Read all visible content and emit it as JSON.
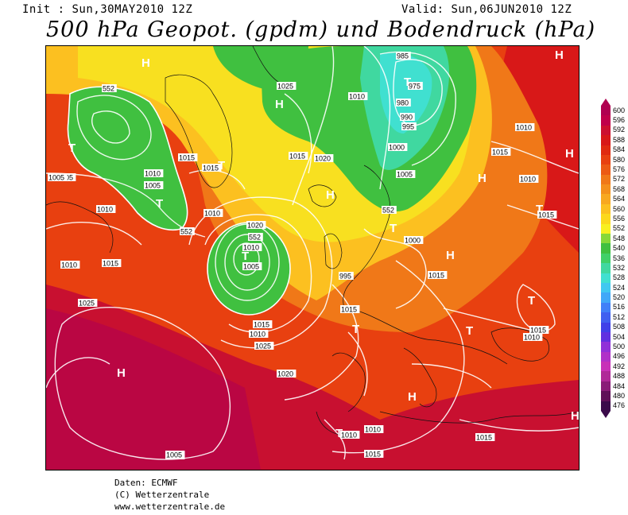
{
  "header": {
    "init": "Init : Sun,30MAY2010 12Z",
    "valid": "Valid: Sun,06JUN2010 12Z",
    "title": "500 hPa Geopot. (gpdm) und Bodendruck (hPa)"
  },
  "legend": {
    "ticks": [
      600,
      596,
      592,
      588,
      584,
      580,
      576,
      572,
      568,
      564,
      560,
      556,
      552,
      548,
      540,
      536,
      532,
      528,
      524,
      520,
      516,
      512,
      508,
      504,
      500,
      496,
      492,
      488,
      484,
      480,
      476
    ],
    "colors": [
      "#b00050",
      "#c0004a",
      "#cc1030",
      "#d81818",
      "#e02a10",
      "#e84010",
      "#ec5a14",
      "#f07818",
      "#f4901c",
      "#f8a820",
      "#fcc020",
      "#fcd81c",
      "#f8f020",
      "#88d838",
      "#40c040",
      "#40d068",
      "#40d8a0",
      "#40e0d0",
      "#40c8f0",
      "#40a8f8",
      "#4080f8",
      "#4060f0",
      "#4040e8",
      "#6030e0",
      "#9030d8",
      "#b030c8",
      "#c830b8",
      "#b02898",
      "#8a1c78",
      "#601058",
      "#3a0a4a"
    ]
  },
  "map": {
    "systems": [
      {
        "label": "H",
        "id": "h-north-atlantic"
      },
      {
        "label": "T",
        "id": "t-labrador"
      },
      {
        "label": "T",
        "id": "t-hudson"
      },
      {
        "label": "T",
        "id": "t-greenland"
      },
      {
        "label": "H",
        "id": "h-greenland"
      },
      {
        "label": "T",
        "id": "t-barents"
      },
      {
        "label": "H",
        "id": "h-arctic-east"
      },
      {
        "label": "H",
        "id": "h-urals"
      },
      {
        "label": "H",
        "id": "h-russia"
      },
      {
        "label": "T",
        "id": "t-atlantic"
      },
      {
        "label": "H",
        "id": "h-scandinavia"
      },
      {
        "label": "T",
        "id": "t-baltic"
      },
      {
        "label": "H",
        "id": "h-europe"
      },
      {
        "label": "T",
        "id": "t-volga"
      },
      {
        "label": "T",
        "id": "t-black-sea"
      },
      {
        "label": "T",
        "id": "t-iberia"
      },
      {
        "label": "T",
        "id": "t-balkans"
      },
      {
        "label": "H",
        "id": "h-azores"
      },
      {
        "label": "H",
        "id": "h-mediterranean"
      },
      {
        "label": "T",
        "id": "t-sahara"
      },
      {
        "label": "H",
        "id": "h-arabia"
      }
    ],
    "labels": [
      "1005",
      "552",
      "1025",
      "985",
      "975",
      "1010",
      "980",
      "990",
      "995",
      "1010",
      "1020",
      "1015",
      "1015",
      "1015",
      "1015",
      "1000",
      "1005",
      "1010",
      "1005",
      "1010",
      "1005",
      "1010",
      "552",
      "1010",
      "1015",
      "1020",
      "552",
      "1010",
      "1005",
      "1000",
      "995",
      "1015",
      "1020",
      "1025",
      "1010",
      "1015",
      "1020",
      "1015",
      "552",
      "1010",
      "1015",
      "1015",
      "1015",
      "1010",
      "1010",
      "1005",
      "1010",
      "1025",
      "1015"
    ]
  },
  "credits": {
    "line1": "Daten: ECMWF",
    "line2": "(C) Wetterzentrale",
    "line3": "www.wetterzentrale.de"
  }
}
